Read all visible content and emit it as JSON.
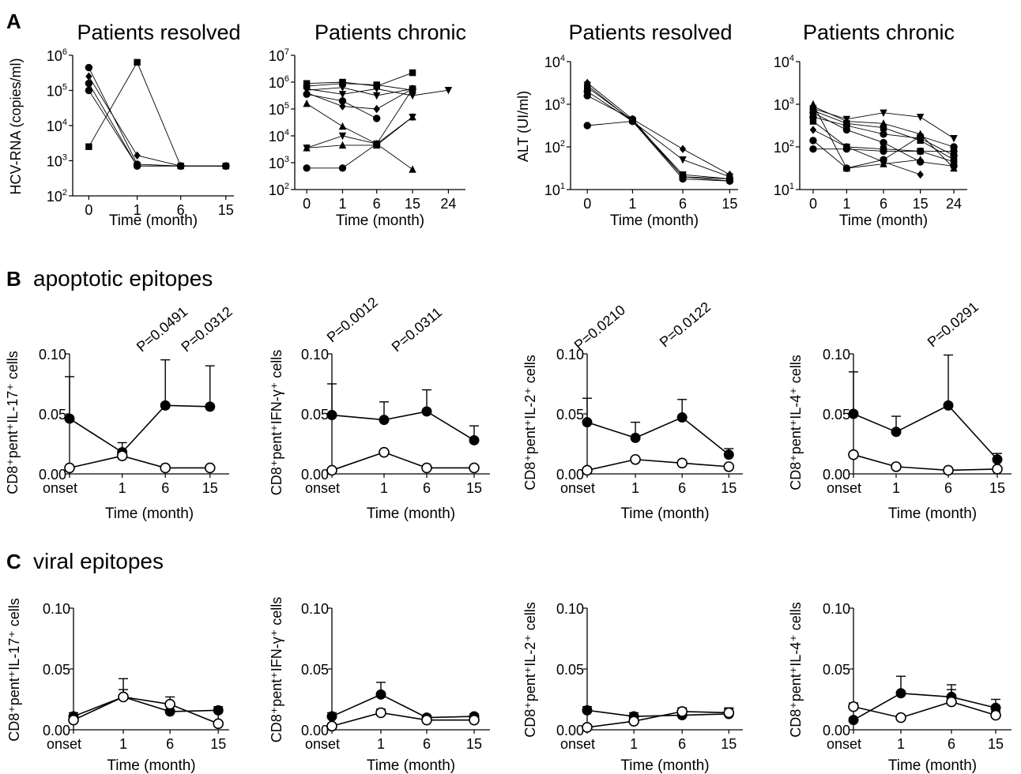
{
  "panel_labels": {
    "A": "A",
    "B": "B",
    "B_title": "apoptotic epitopes",
    "C": "C",
    "C_title": "viral epitopes"
  },
  "chart_data": [
    {
      "id": "A1",
      "type": "line",
      "scale": "log",
      "title": "Patients resolved",
      "ylabel": "HCV-RNA (copies/ml)",
      "xlabel": "Time (month)",
      "categories": [
        "0",
        "1",
        "6",
        "15"
      ],
      "yticks": [
        2,
        3,
        4,
        5,
        6
      ],
      "ylim": [
        2,
        6
      ],
      "series": [
        {
          "values": [
            5.65,
            2.9,
            2.85,
            2.85
          ],
          "marker": "circle"
        },
        {
          "values": [
            5.4,
            3.15,
            2.85,
            2.85
          ],
          "marker": "diamond"
        },
        {
          "values": [
            5.2,
            2.85,
            2.85,
            2.85
          ],
          "marker": "circle"
        },
        {
          "values": [
            5.0,
            2.85,
            2.85,
            2.85
          ],
          "marker": "circle"
        },
        {
          "values": [
            3.4,
            5.8,
            2.85,
            2.85
          ],
          "marker": "square"
        }
      ]
    },
    {
      "id": "A2",
      "type": "line",
      "scale": "log",
      "title": "Patients chronic",
      "xlabel": "Time (month)",
      "categories": [
        "0",
        "1",
        "6",
        "15",
        "24"
      ],
      "yticks": [
        2,
        3,
        4,
        5,
        6,
        7
      ],
      "ylim": [
        2,
        7
      ],
      "series": [
        {
          "values": [
            5.95,
            6.0,
            5.85,
            6.35,
            null
          ],
          "marker": "square"
        },
        {
          "values": [
            5.85,
            5.95,
            5.9,
            5.7,
            null
          ],
          "marker": "square"
        },
        {
          "values": [
            5.75,
            5.55,
            5.75,
            5.5,
            5.7
          ],
          "marker": "triangle-down"
        },
        {
          "values": [
            5.7,
            5.8,
            5.5,
            5.75,
            null
          ],
          "marker": "triangle-down"
        },
        {
          "values": [
            5.6,
            5.1,
            5.0,
            5.75,
            null
          ],
          "marker": "diamond"
        },
        {
          "values": [
            5.55,
            5.3,
            4.65,
            null,
            null
          ],
          "marker": "circle"
        },
        {
          "values": [
            5.2,
            4.35,
            3.7,
            2.75,
            null
          ],
          "marker": "triangle"
        },
        {
          "values": [
            3.55,
            3.65,
            3.65,
            4.7,
            null
          ],
          "marker": "triangle"
        },
        {
          "values": [
            3.55,
            4.0,
            3.7,
            4.7,
            null
          ],
          "marker": "triangle-down"
        },
        {
          "values": [
            2.8,
            2.8,
            3.7,
            5.75,
            null
          ],
          "marker": "circle"
        }
      ]
    },
    {
      "id": "A3",
      "type": "line",
      "scale": "log",
      "title": "Patients resolved",
      "ylabel": "ALT (UI/ml)",
      "xlabel": "Time (month)",
      "categories": [
        "0",
        "1",
        "6",
        "15"
      ],
      "yticks": [
        1,
        2,
        3,
        4
      ],
      "ylim": [
        1,
        4
      ],
      "series": [
        {
          "values": [
            3.5,
            2.65,
            1.95,
            1.35
          ],
          "marker": "diamond"
        },
        {
          "values": [
            3.45,
            2.6,
            1.7,
            1.3
          ],
          "marker": "triangle-down"
        },
        {
          "values": [
            3.4,
            2.62,
            1.35,
            1.25
          ],
          "marker": "square"
        },
        {
          "values": [
            3.3,
            2.6,
            1.3,
            1.25
          ],
          "marker": "circle"
        },
        {
          "values": [
            3.2,
            2.65,
            1.3,
            1.2
          ],
          "marker": "circle"
        },
        {
          "values": [
            2.5,
            2.6,
            1.25,
            1.2
          ],
          "marker": "circle"
        }
      ]
    },
    {
      "id": "A4",
      "type": "line",
      "scale": "log",
      "title": "Patients chronic",
      "xlabel": "Time (month)",
      "categories": [
        "0",
        "1",
        "6",
        "15",
        "24"
      ],
      "yticks": [
        1,
        2,
        3,
        4
      ],
      "ylim": [
        1,
        4
      ],
      "series": [
        {
          "values": [
            3.0,
            1.5,
            1.6,
            1.7,
            null
          ],
          "marker": "triangle"
        },
        {
          "values": [
            2.95,
            2.6,
            2.55,
            2.3,
            1.5
          ],
          "marker": "triangle"
        },
        {
          "values": [
            2.9,
            2.65,
            2.8,
            2.7,
            2.2
          ],
          "marker": "triangle-down"
        },
        {
          "values": [
            2.85,
            2.55,
            2.45,
            2.15,
            1.7
          ],
          "marker": "square"
        },
        {
          "values": [
            2.8,
            2.4,
            2.1,
            1.65,
            1.55
          ],
          "marker": "circle"
        },
        {
          "values": [
            2.7,
            2.5,
            2.3,
            2.2,
            1.8
          ],
          "marker": "circle"
        },
        {
          "values": [
            2.6,
            2.0,
            1.95,
            1.9,
            1.65
          ],
          "marker": "square"
        },
        {
          "values": [
            2.4,
            2.0,
            1.65,
            1.35,
            null
          ],
          "marker": "diamond"
        },
        {
          "values": [
            2.15,
            1.5,
            1.7,
            2.25,
            2.0
          ],
          "marker": "circle"
        },
        {
          "values": [
            1.95,
            1.95,
            1.9,
            1.9,
            1.9
          ],
          "marker": "circle"
        }
      ]
    },
    {
      "id": "B1",
      "type": "line",
      "ylabel": "CD8⁺pent⁺IL-17⁺ cells",
      "xlabel": "Time (month)",
      "categories": [
        "onset",
        "1",
        "6",
        "15"
      ],
      "ylim": [
        0,
        0.1
      ],
      "yticks": [
        0,
        0.05,
        0.1
      ],
      "yticklabels": [
        "0.00",
        "0.05",
        "0.10"
      ],
      "series": [
        {
          "values": [
            0.046,
            0.018,
            0.057,
            0.056
          ],
          "err": [
            0.035,
            0.008,
            0.038,
            0.034
          ],
          "marker": "filled-circle"
        },
        {
          "values": [
            0.005,
            0.015,
            0.005,
            0.005
          ],
          "err": [
            0,
            0,
            0,
            0
          ],
          "marker": "open-circle"
        }
      ],
      "annotations": [
        {
          "text": "P=0.0491",
          "at": "6"
        },
        {
          "text": "P=0.0312",
          "at": "15"
        }
      ]
    },
    {
      "id": "B2",
      "type": "line",
      "ylabel": "CD8⁺pent⁺IFN-γ⁺ cells",
      "xlabel": "Time (month)",
      "categories": [
        "onset",
        "1",
        "6",
        "15"
      ],
      "ylim": [
        0,
        0.1
      ],
      "yticks": [
        0,
        0.05,
        0.1
      ],
      "yticklabels": [
        "0.00",
        "0.05",
        "0.10"
      ],
      "series": [
        {
          "values": [
            0.049,
            0.045,
            0.052,
            0.028
          ],
          "err": [
            0.026,
            0.015,
            0.018,
            0.012
          ],
          "marker": "filled-circle"
        },
        {
          "values": [
            0.003,
            0.018,
            0.005,
            0.005
          ],
          "err": [
            0,
            0,
            0,
            0
          ],
          "marker": "open-circle"
        }
      ],
      "annotations": [
        {
          "text": "P=0.0012",
          "at": "onset"
        },
        {
          "text": "P=0.0311",
          "at": "6"
        }
      ]
    },
    {
      "id": "B3",
      "type": "line",
      "ylabel": "CD8⁺pent⁺IL-2⁺ cells",
      "xlabel": "Time (month)",
      "categories": [
        "onset",
        "1",
        "6",
        "15"
      ],
      "ylim": [
        0,
        0.1
      ],
      "yticks": [
        0,
        0.05,
        0.1
      ],
      "yticklabels": [
        "0.00",
        "0.05",
        "0.10"
      ],
      "series": [
        {
          "values": [
            0.043,
            0.03,
            0.047,
            0.016
          ],
          "err": [
            0.02,
            0.013,
            0.015,
            0.005
          ],
          "marker": "filled-circle"
        },
        {
          "values": [
            0.003,
            0.012,
            0.009,
            0.006
          ],
          "err": [
            0,
            0,
            0,
            0
          ],
          "marker": "open-circle"
        }
      ],
      "annotations": [
        {
          "text": "P=0.0210",
          "at": "onset"
        },
        {
          "text": "P=0.0122",
          "at": "6"
        }
      ]
    },
    {
      "id": "B4",
      "type": "line",
      "ylabel": "CD8⁺pent⁺IL-4⁺ cells",
      "xlabel": "Time (month)",
      "categories": [
        "onset",
        "1",
        "6",
        "15"
      ],
      "ylim": [
        0,
        0.1
      ],
      "yticks": [
        0,
        0.05,
        0.1
      ],
      "yticklabels": [
        "0.00",
        "0.05",
        "0.10"
      ],
      "series": [
        {
          "values": [
            0.05,
            0.035,
            0.057,
            0.012
          ],
          "err": [
            0.035,
            0.013,
            0.042,
            0.005
          ],
          "marker": "filled-circle"
        },
        {
          "values": [
            0.016,
            0.006,
            0.003,
            0.004
          ],
          "err": [
            0,
            0,
            0,
            0
          ],
          "marker": "open-circle"
        }
      ],
      "annotations": [
        {
          "text": "P=0.0291",
          "at": "6"
        }
      ]
    },
    {
      "id": "C1",
      "type": "line",
      "ylabel": "CD8⁺pent⁺IL-17⁺ cells",
      "xlabel": "Time (month)",
      "categories": [
        "onset",
        "1",
        "6",
        "15"
      ],
      "ylim": [
        0,
        0.1
      ],
      "yticks": [
        0,
        0.05,
        0.1
      ],
      "yticklabels": [
        "0.00",
        "0.05",
        "0.10"
      ],
      "series": [
        {
          "values": [
            0.011,
            0.027,
            0.015,
            0.016
          ],
          "err": [
            0.003,
            0.006,
            0.006,
            0.003
          ],
          "marker": "filled-circle"
        },
        {
          "values": [
            0.008,
            0.027,
            0.021,
            0.005
          ],
          "err": [
            0.003,
            0.015,
            0.006,
            0.011
          ],
          "marker": "open-circle"
        }
      ]
    },
    {
      "id": "C2",
      "type": "line",
      "ylabel": "CD8⁺pent⁺IFN-γ⁺ cells",
      "xlabel": "Time (month)",
      "categories": [
        "onset",
        "1",
        "6",
        "15"
      ],
      "ylim": [
        0,
        0.1
      ],
      "yticks": [
        0,
        0.05,
        0.1
      ],
      "yticklabels": [
        "0.00",
        "0.05",
        "0.10"
      ],
      "series": [
        {
          "values": [
            0.011,
            0.029,
            0.01,
            0.011
          ],
          "err": [
            0.003,
            0.01,
            0.002,
            0.002
          ],
          "marker": "filled-circle"
        },
        {
          "values": [
            0.003,
            0.014,
            0.008,
            0.008
          ],
          "err": [
            0.002,
            0.003,
            0.002,
            0.002
          ],
          "marker": "open-circle"
        }
      ]
    },
    {
      "id": "C3",
      "type": "line",
      "ylabel": "CD8⁺pent⁺IL-2⁺ cells",
      "xlabel": "Time (month)",
      "categories": [
        "onset",
        "1",
        "6",
        "15"
      ],
      "ylim": [
        0,
        0.1
      ],
      "yticks": [
        0,
        0.05,
        0.1
      ],
      "yticklabels": [
        "0.00",
        "0.05",
        "0.10"
      ],
      "series": [
        {
          "values": [
            0.016,
            0.011,
            0.012,
            0.013
          ],
          "err": [
            0.003,
            0.003,
            0.004,
            0.004
          ],
          "marker": "filled-circle"
        },
        {
          "values": [
            0.002,
            0.007,
            0.015,
            0.014
          ],
          "err": [
            0.001,
            0.002,
            0.003,
            0.004
          ],
          "marker": "open-circle"
        }
      ]
    },
    {
      "id": "C4",
      "type": "line",
      "ylabel": "CD8⁺pent⁺IL-4⁺ cells",
      "xlabel": "Time (month)",
      "categories": [
        "onset",
        "1",
        "6",
        "15"
      ],
      "ylim": [
        0,
        0.1
      ],
      "yticks": [
        0,
        0.05,
        0.1
      ],
      "yticklabels": [
        "0.00",
        "0.05",
        "0.10"
      ],
      "series": [
        {
          "values": [
            0.008,
            0.03,
            0.027,
            0.018
          ],
          "err": [
            0.002,
            0.014,
            0.01,
            0.007
          ],
          "marker": "filled-circle"
        },
        {
          "values": [
            0.019,
            0.01,
            0.023,
            0.012
          ],
          "err": [
            0.003,
            0.002,
            0.01,
            0.003
          ],
          "marker": "open-circle"
        }
      ]
    }
  ]
}
